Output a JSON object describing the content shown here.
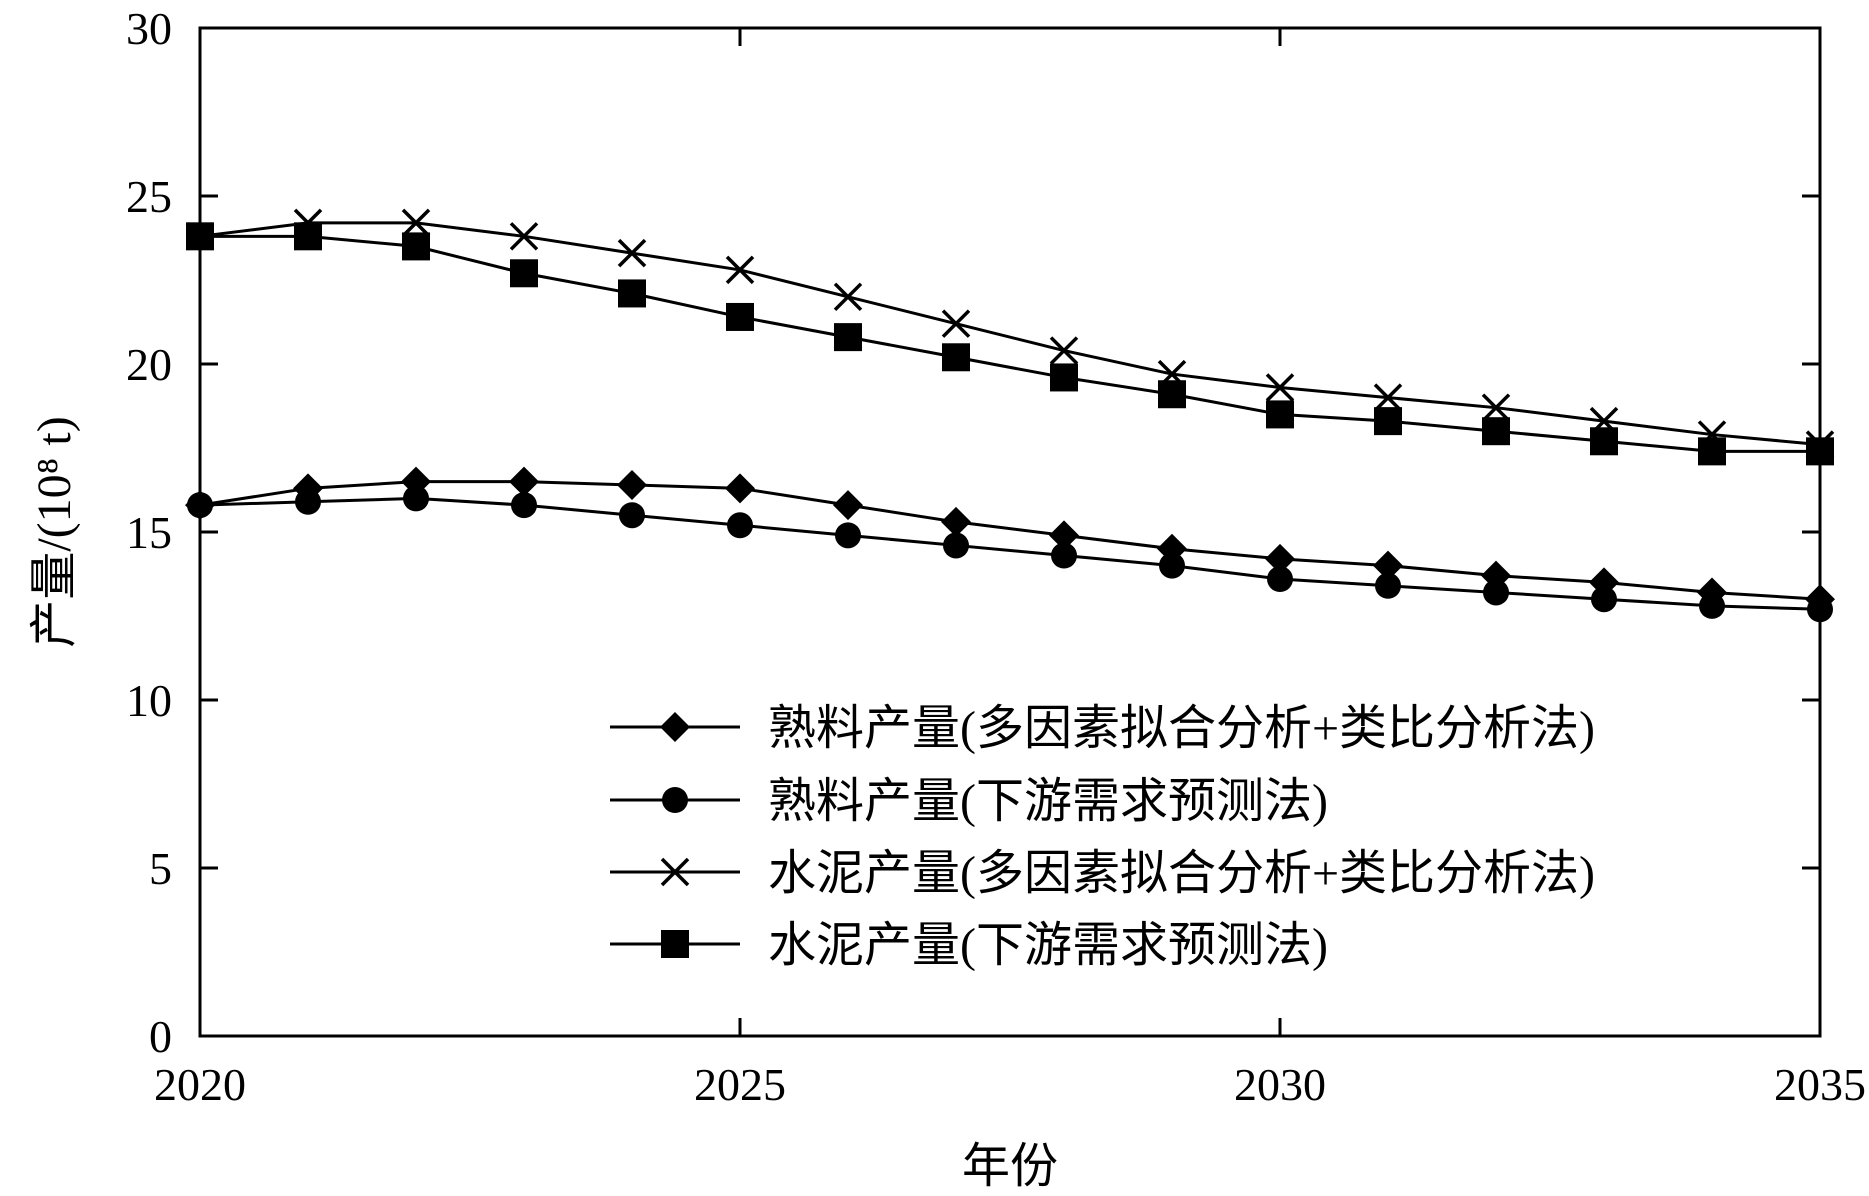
{
  "chart_data": {
    "type": "line",
    "xlabel": "年份",
    "ylabel": "产量/(10⁸ t)",
    "xlim": [
      2020,
      2035
    ],
    "ylim": [
      0,
      30
    ],
    "x_ticks": [
      2020,
      2025,
      2030,
      2035
    ],
    "y_ticks": [
      0,
      5,
      10,
      15,
      20,
      25,
      30
    ],
    "grid": false,
    "legend_position": "lower-right",
    "x": [
      2020,
      2021,
      2022,
      2023,
      2024,
      2025,
      2026,
      2027,
      2028,
      2029,
      2030,
      2031,
      2032,
      2033,
      2034,
      2035
    ],
    "series": [
      {
        "name": "熟料产量(多因素拟合分析+类比分析法)",
        "marker": "diamond",
        "values": [
          15.8,
          16.3,
          16.5,
          16.5,
          16.4,
          16.3,
          15.8,
          15.3,
          14.9,
          14.5,
          14.2,
          14.0,
          13.7,
          13.5,
          13.2,
          13.0
        ]
      },
      {
        "name": "熟料产量(下游需求预测法)",
        "marker": "circle",
        "values": [
          15.8,
          15.9,
          16.0,
          15.8,
          15.5,
          15.2,
          14.9,
          14.6,
          14.3,
          14.0,
          13.6,
          13.4,
          13.2,
          13.0,
          12.8,
          12.7
        ]
      },
      {
        "name": "水泥产量(多因素拟合分析+类比分析法)",
        "marker": "x",
        "values": [
          23.8,
          24.2,
          24.2,
          23.8,
          23.3,
          22.8,
          22.0,
          21.2,
          20.4,
          19.7,
          19.3,
          19.0,
          18.7,
          18.3,
          17.9,
          17.6
        ]
      },
      {
        "name": "水泥产量(下游需求预测法)",
        "marker": "square",
        "values": [
          23.8,
          23.8,
          23.5,
          22.7,
          22.1,
          21.4,
          20.8,
          20.2,
          19.6,
          19.1,
          18.5,
          18.3,
          18.0,
          17.7,
          17.4,
          17.4
        ]
      }
    ]
  }
}
